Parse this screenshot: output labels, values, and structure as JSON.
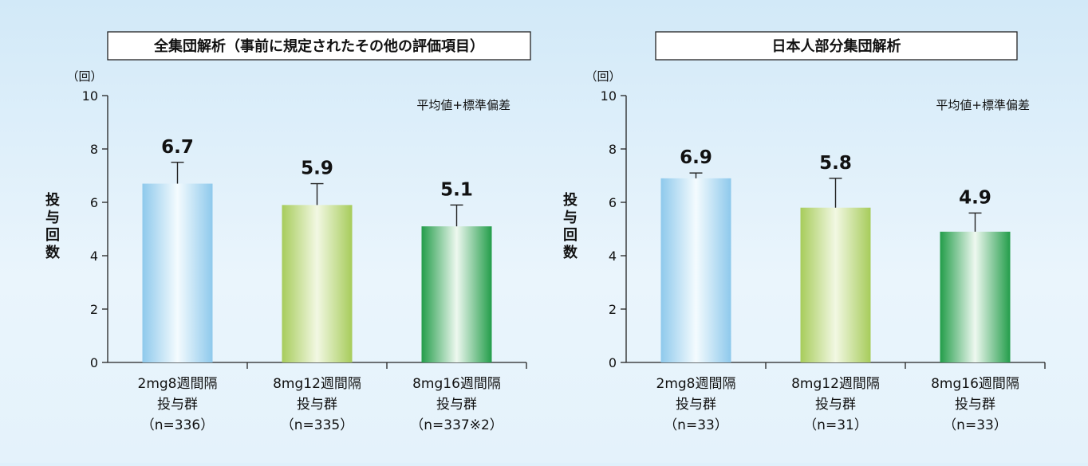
{
  "colors": {
    "background": "#dff0fb",
    "group1": "#8ec9ec",
    "group2": "#a7cc5b",
    "group3": "#239d4a",
    "error_bar": "#222222"
  },
  "chart_data": [
    {
      "type": "bar",
      "title": "全集団解析（事前に規定されたその他の評価項目）",
      "unit_label": "（回）",
      "ylabel": "投与回数",
      "note": "平均値+標準偏差",
      "ylim": [
        0,
        10
      ],
      "yticks": [
        "10",
        "8",
        "6",
        "4",
        "2",
        "0"
      ],
      "categories": [
        [
          "2mg8週間隔",
          "投与群",
          "（n=336）"
        ],
        [
          "8mg12週間隔",
          "投与群",
          "（n=335）"
        ],
        [
          "8mg16週間隔",
          "投与群",
          "（n=337※2）"
        ]
      ],
      "values": [
        6.7,
        5.9,
        5.1
      ],
      "value_labels": [
        "6.7",
        "5.9",
        "5.1"
      ],
      "error_upper": [
        7.5,
        6.7,
        5.9
      ],
      "grid": false
    },
    {
      "type": "bar",
      "title": "日本人部分集団解析",
      "unit_label": "（回）",
      "ylabel": "投与回数",
      "note": "平均値+標準偏差",
      "ylim": [
        0,
        10
      ],
      "yticks": [
        "10",
        "8",
        "6",
        "4",
        "2",
        "0"
      ],
      "categories": [
        [
          "2mg8週間隔",
          "投与群",
          "（n=33）"
        ],
        [
          "8mg12週間隔",
          "投与群",
          "（n=31）"
        ],
        [
          "8mg16週間隔",
          "投与群",
          "（n=33）"
        ]
      ],
      "values": [
        6.9,
        5.8,
        4.9
      ],
      "value_labels": [
        "6.9",
        "5.8",
        "4.9"
      ],
      "error_upper": [
        7.1,
        6.9,
        5.6
      ],
      "grid": false
    }
  ]
}
